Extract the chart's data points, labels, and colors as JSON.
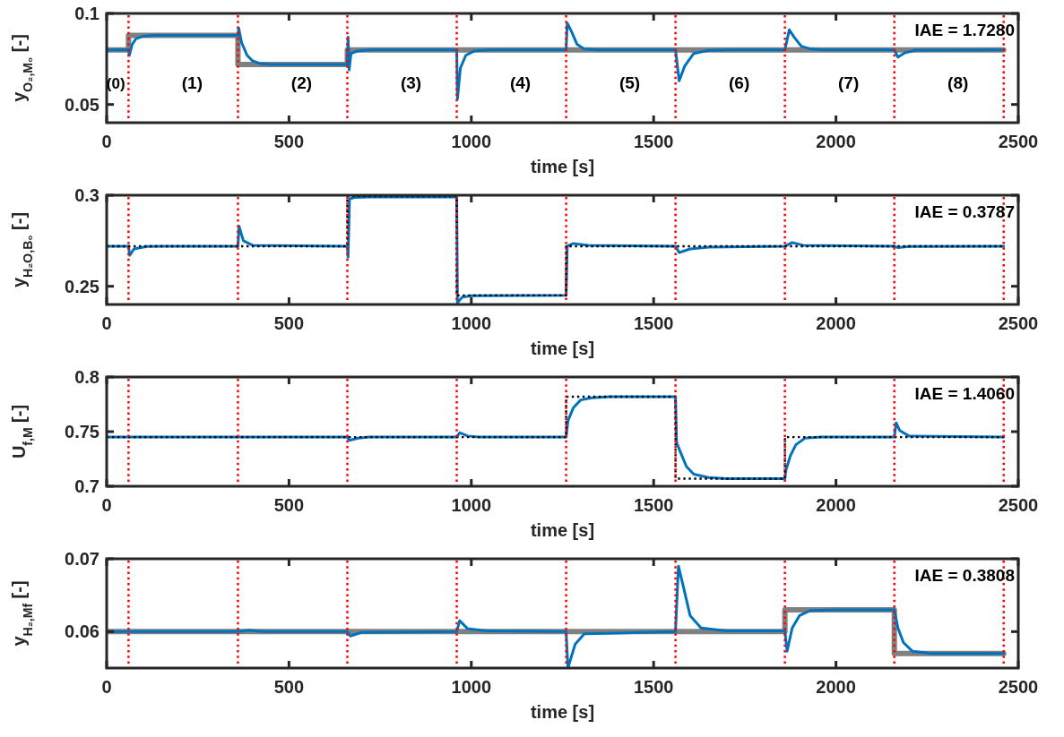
{
  "chart_data": [
    {
      "type": "line",
      "xlabel": "time [s]",
      "ylabel": "y$_{O₂,M₀}$ [-]",
      "xlim": [
        0,
        2500
      ],
      "xticks": [
        0,
        500,
        1000,
        1500,
        2000,
        2500
      ],
      "ylim": [
        0.04,
        0.1
      ],
      "yticks": [
        0.05,
        0.1
      ],
      "grid": false,
      "series": [
        {
          "color": "#808080",
          "line_style": "solid",
          "x": [
            0,
            60,
            60,
            360,
            360,
            660,
            660,
            2460
          ],
          "values": [
            0.08,
            0.08,
            0.088,
            0.088,
            0.072,
            0.072,
            0.08,
            0.08
          ]
        },
        {
          "color": "#0072bd",
          "line_style": "solid",
          "x": [
            0,
            60,
            62,
            70,
            80,
            100,
            130,
            360,
            362,
            370,
            385,
            400,
            420,
            450,
            660,
            662,
            665,
            670,
            690,
            720,
            960,
            962,
            970,
            985,
            1010,
            1050,
            1260,
            1263,
            1275,
            1290,
            1310,
            1350,
            1560,
            1570,
            1585,
            1610,
            1650,
            1700,
            1860,
            1872,
            1885,
            1905,
            1930,
            1970,
            2160,
            2170,
            2190,
            2220,
            2460
          ],
          "values": [
            0.08,
            0.08,
            0.077,
            0.083,
            0.086,
            0.0875,
            0.088,
            0.088,
            0.092,
            0.084,
            0.077,
            0.074,
            0.0725,
            0.072,
            0.072,
            0.087,
            0.069,
            0.078,
            0.0795,
            0.08,
            0.08,
            0.053,
            0.07,
            0.077,
            0.0795,
            0.08,
            0.08,
            0.0947,
            0.09,
            0.083,
            0.0805,
            0.08,
            0.08,
            0.063,
            0.071,
            0.078,
            0.0797,
            0.08,
            0.08,
            0.091,
            0.087,
            0.082,
            0.0805,
            0.08,
            0.08,
            0.076,
            0.0785,
            0.0798,
            0.08
          ]
        }
      ],
      "ref_lines": [
        {
          "axis": "x",
          "value": 60,
          "color": "#ff0000",
          "line_style": "dotted"
        },
        {
          "axis": "x",
          "value": 360,
          "color": "#ff0000",
          "line_style": "dotted"
        },
        {
          "axis": "x",
          "value": 660,
          "color": "#ff0000",
          "line_style": "dotted"
        },
        {
          "axis": "x",
          "value": 960,
          "color": "#ff0000",
          "line_style": "dotted"
        },
        {
          "axis": "x",
          "value": 1260,
          "color": "#ff0000",
          "line_style": "dotted"
        },
        {
          "axis": "x",
          "value": 1560,
          "color": "#ff0000",
          "line_style": "dotted"
        },
        {
          "axis": "x",
          "value": 1860,
          "color": "#ff0000",
          "line_style": "dotted"
        },
        {
          "axis": "x",
          "value": 2160,
          "color": "#ff0000",
          "line_style": "dotted"
        },
        {
          "axis": "x",
          "value": 2460,
          "color": "#ff0000",
          "line_style": "dotted"
        }
      ],
      "annotations": [
        "IAE = 1.7280",
        "(0)",
        "(1)",
        "(2)",
        "(3)",
        "(4)",
        "(5)",
        "(6)",
        "(7)",
        "(8)"
      ]
    },
    {
      "type": "line",
      "xlabel": "time [s]",
      "ylabel": "y$_{H₂O,B₀}$ [-]",
      "xlim": [
        0,
        2500
      ],
      "xticks": [
        0,
        500,
        1000,
        1500,
        2000,
        2500
      ],
      "ylim": [
        0.24,
        0.3
      ],
      "yticks": [
        0.25,
        0.3
      ],
      "grid": false,
      "series": [
        {
          "color": "#0072bd",
          "line_style": "solid",
          "x": [
            0,
            60,
            63,
            75,
            110,
            150,
            360,
            363,
            375,
            400,
            660,
            662,
            666,
            680,
            720,
            960,
            962,
            975,
            1000,
            1260,
            1263,
            1280,
            1320,
            1560,
            1570,
            1600,
            1650,
            1860,
            1880,
            1910,
            2160,
            2170,
            2200,
            2460
          ],
          "values": [
            0.272,
            0.272,
            0.267,
            0.2705,
            0.2718,
            0.272,
            0.272,
            0.283,
            0.275,
            0.2725,
            0.272,
            0.266,
            0.298,
            0.2988,
            0.299,
            0.299,
            0.241,
            0.244,
            0.2448,
            0.245,
            0.272,
            0.2735,
            0.2725,
            0.272,
            0.2685,
            0.2705,
            0.2715,
            0.272,
            0.274,
            0.2725,
            0.272,
            0.2712,
            0.2718,
            0.272
          ]
        },
        {
          "color": "#000000",
          "line_style": "dotted",
          "x": [
            0,
            660,
            660,
            960,
            960,
            1260,
            1260,
            2460
          ],
          "values": [
            0.272,
            0.272,
            0.2995,
            0.2995,
            0.245,
            0.245,
            0.272,
            0.272
          ]
        }
      ],
      "ref_lines": [
        {
          "axis": "x",
          "value": 60,
          "color": "#ff0000",
          "line_style": "dotted"
        },
        {
          "axis": "x",
          "value": 360,
          "color": "#ff0000",
          "line_style": "dotted"
        },
        {
          "axis": "x",
          "value": 660,
          "color": "#ff0000",
          "line_style": "dotted"
        },
        {
          "axis": "x",
          "value": 960,
          "color": "#ff0000",
          "line_style": "dotted"
        },
        {
          "axis": "x",
          "value": 1260,
          "color": "#ff0000",
          "line_style": "dotted"
        },
        {
          "axis": "x",
          "value": 1560,
          "color": "#ff0000",
          "line_style": "dotted"
        },
        {
          "axis": "x",
          "value": 1860,
          "color": "#ff0000",
          "line_style": "dotted"
        },
        {
          "axis": "x",
          "value": 2160,
          "color": "#ff0000",
          "line_style": "dotted"
        },
        {
          "axis": "x",
          "value": 2460,
          "color": "#ff0000",
          "line_style": "dotted"
        }
      ],
      "annotations": [
        "IAE = 0.3787"
      ]
    },
    {
      "type": "line",
      "xlabel": "time [s]",
      "ylabel": "U$_{f,M}$ [-]",
      "xlim": [
        0,
        2500
      ],
      "xticks": [
        0,
        500,
        1000,
        1500,
        2000,
        2500
      ],
      "ylim": [
        0.7,
        0.8
      ],
      "yticks": [
        0.7,
        0.75,
        0.8
      ],
      "grid": false,
      "series": [
        {
          "color": "#0072bd",
          "line_style": "solid",
          "x": [
            0,
            660,
            665,
            690,
            720,
            960,
            968,
            990,
            1020,
            1260,
            1265,
            1280,
            1300,
            1330,
            1380,
            1560,
            1563,
            1575,
            1590,
            1610,
            1650,
            1700,
            1860,
            1863,
            1875,
            1890,
            1915,
            1960,
            2160,
            2165,
            2175,
            2200,
            2460
          ],
          "values": [
            0.745,
            0.745,
            0.742,
            0.744,
            0.745,
            0.745,
            0.749,
            0.746,
            0.745,
            0.745,
            0.76,
            0.772,
            0.779,
            0.781,
            0.782,
            0.782,
            0.74,
            0.73,
            0.718,
            0.711,
            0.708,
            0.707,
            0.707,
            0.715,
            0.728,
            0.738,
            0.744,
            0.745,
            0.745,
            0.758,
            0.751,
            0.746,
            0.745
          ]
        },
        {
          "color": "#000000",
          "line_style": "dotted",
          "x": [
            0,
            1260,
            1260,
            1560,
            1560,
            1860,
            1860,
            2460
          ],
          "values": [
            0.745,
            0.745,
            0.782,
            0.782,
            0.707,
            0.707,
            0.745,
            0.745
          ]
        }
      ],
      "ref_lines": [
        {
          "axis": "x",
          "value": 60,
          "color": "#ff0000",
          "line_style": "dotted"
        },
        {
          "axis": "x",
          "value": 360,
          "color": "#ff0000",
          "line_style": "dotted"
        },
        {
          "axis": "x",
          "value": 660,
          "color": "#ff0000",
          "line_style": "dotted"
        },
        {
          "axis": "x",
          "value": 960,
          "color": "#ff0000",
          "line_style": "dotted"
        },
        {
          "axis": "x",
          "value": 1260,
          "color": "#ff0000",
          "line_style": "dotted"
        },
        {
          "axis": "x",
          "value": 1560,
          "color": "#ff0000",
          "line_style": "dotted"
        },
        {
          "axis": "x",
          "value": 1860,
          "color": "#ff0000",
          "line_style": "dotted"
        },
        {
          "axis": "x",
          "value": 2160,
          "color": "#ff0000",
          "line_style": "dotted"
        },
        {
          "axis": "x",
          "value": 2460,
          "color": "#ff0000",
          "line_style": "dotted"
        }
      ],
      "annotations": [
        "IAE = 1.4060"
      ]
    },
    {
      "type": "line",
      "xlabel": "time [s]",
      "ylabel": "y$_{H₂,Mf}$ [-]",
      "xlim": [
        0,
        2500
      ],
      "xticks": [
        0,
        500,
        1000,
        1500,
        2000,
        2500
      ],
      "ylim": [
        0.055,
        0.07
      ],
      "yticks": [
        0.06,
        0.07
      ],
      "grid": false,
      "series": [
        {
          "color": "#808080",
          "line_style": "solid",
          "x": [
            0,
            1860,
            1860,
            2160,
            2160,
            2460
          ],
          "values": [
            0.06,
            0.06,
            0.063,
            0.063,
            0.057,
            0.057
          ]
        },
        {
          "color": "#0072bd",
          "line_style": "solid",
          "x": [
            0,
            360,
            390,
            430,
            660,
            668,
            700,
            960,
            968,
            990,
            1040,
            1260,
            1265,
            1285,
            1310,
            1400,
            1560,
            1568,
            1580,
            1600,
            1630,
            1700,
            1860,
            1866,
            1880,
            1900,
            1930,
            2000,
            2160,
            2170,
            2185,
            2210,
            2260,
            2460
          ],
          "values": [
            0.06,
            0.06,
            0.0602,
            0.06,
            0.06,
            0.0594,
            0.0599,
            0.06,
            0.0615,
            0.0604,
            0.0601,
            0.06,
            0.055,
            0.0583,
            0.0597,
            0.0598,
            0.06,
            0.069,
            0.0665,
            0.0622,
            0.0605,
            0.0601,
            0.0601,
            0.0573,
            0.0605,
            0.0622,
            0.0629,
            0.063,
            0.063,
            0.0605,
            0.0585,
            0.0573,
            0.057,
            0.057
          ]
        }
      ],
      "ref_lines": [
        {
          "axis": "x",
          "value": 60,
          "color": "#ff0000",
          "line_style": "dotted"
        },
        {
          "axis": "x",
          "value": 360,
          "color": "#ff0000",
          "line_style": "dotted"
        },
        {
          "axis": "x",
          "value": 660,
          "color": "#ff0000",
          "line_style": "dotted"
        },
        {
          "axis": "x",
          "value": 960,
          "color": "#ff0000",
          "line_style": "dotted"
        },
        {
          "axis": "x",
          "value": 1260,
          "color": "#ff0000",
          "line_style": "dotted"
        },
        {
          "axis": "x",
          "value": 1560,
          "color": "#ff0000",
          "line_style": "dotted"
        },
        {
          "axis": "x",
          "value": 1860,
          "color": "#ff0000",
          "line_style": "dotted"
        },
        {
          "axis": "x",
          "value": 2160,
          "color": "#ff0000",
          "line_style": "dotted"
        },
        {
          "axis": "x",
          "value": 2460,
          "color": "#ff0000",
          "line_style": "dotted"
        }
      ],
      "annotations": [
        "IAE = 0.3808"
      ]
    }
  ]
}
